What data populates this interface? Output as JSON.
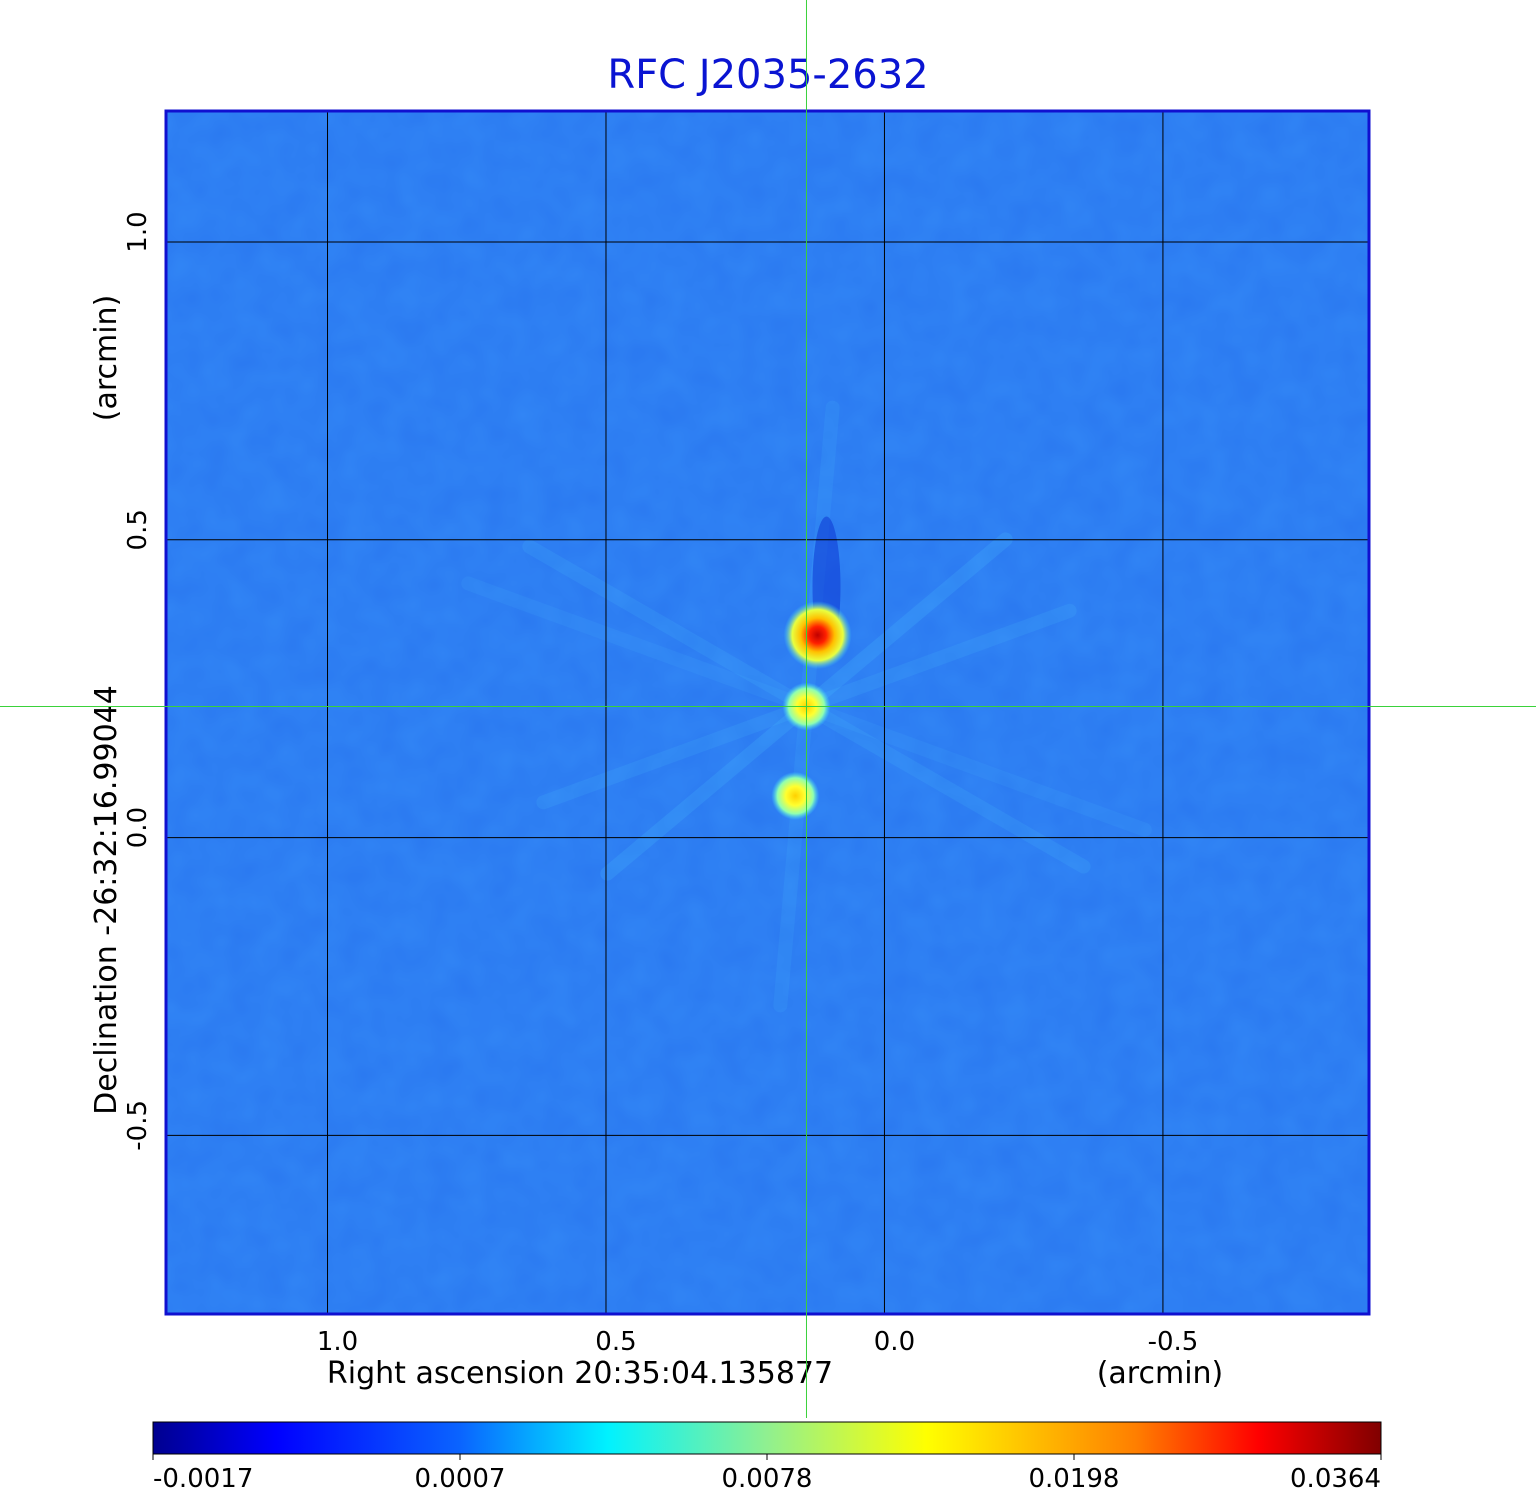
{
  "chart_data": {
    "type": "heatmap",
    "title": "RFC J2035-2632",
    "xlabel": "Right ascension  20:35:04.135877",
    "xunit": "(arcmin)",
    "ylabel": "Declination  -26:32:16.99044",
    "yunit": "(arcmin)",
    "xlim": [
      1.29,
      -0.87
    ],
    "ylim": [
      -0.8,
      1.22
    ],
    "xticks": [
      1.0,
      0.5,
      0.0,
      -0.5
    ],
    "xtick_labels": [
      "1.0",
      "0.5",
      "0.0",
      "-0.5"
    ],
    "yticks": [
      1.0,
      0.5,
      0.0,
      -0.5
    ],
    "ytick_labels": [
      "1.0",
      "0.5",
      "0.0",
      "-0.5"
    ],
    "grid": true,
    "crosshair": {
      "x": 0.14,
      "y": 0.22
    },
    "sources": [
      {
        "x": 0.12,
        "y": 0.34,
        "peak": 0.0364
      },
      {
        "x": 0.14,
        "y": 0.22,
        "peak": 0.0198
      },
      {
        "x": 0.16,
        "y": 0.07,
        "peak": 0.0198
      }
    ],
    "colorbar": {
      "colormap": "jet",
      "tick_labels": [
        "-0.0017",
        "0.0007",
        "0.0078",
        "0.0198",
        "0.0364"
      ]
    }
  },
  "colors": {
    "title": "#0a14d2",
    "frame": "#1010d0",
    "background_map": "#2a78f0",
    "crosshair": "#3ad23a",
    "grid": "#000000"
  }
}
